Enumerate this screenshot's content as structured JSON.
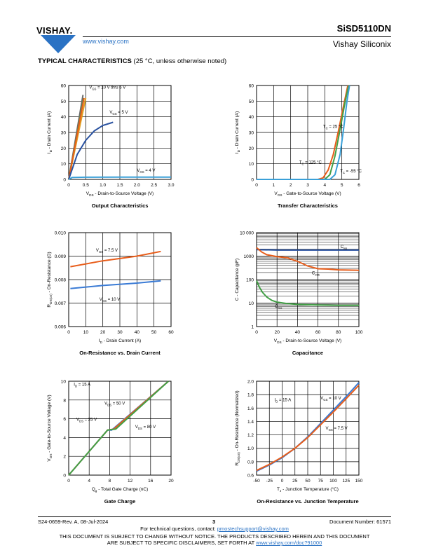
{
  "header": {
    "brand": "VISHAY.",
    "website": "www.vishay.com",
    "part_number": "SiSD5110DN",
    "company": "Vishay Siliconix"
  },
  "section": {
    "title": "TYPICAL CHARACTERISTICS",
    "note": "(25 °C, unless otherwise noted)"
  },
  "footer": {
    "revision": "S24-0659-Rev. A, 08-Jul-2024",
    "page": "3",
    "doc_number": "Document Number: 61571",
    "contact_prefix": "For technical questions, contact:",
    "contact_email": "pmostechsupport@vishay.com",
    "notice_line1": "THIS DOCUMENT IS SUBJECT TO CHANGE WITHOUT NOTICE. THE PRODUCTS DESCRIBED HEREIN AND THIS DOCUMENT",
    "notice_line2_prefix": "ARE SUBJECT TO SPECIFIC DISCLAIMERS, SET FORTH AT",
    "notice_link": "www.vishay.com/doc?91000"
  },
  "chart_data": [
    {
      "id": "output",
      "type": "line",
      "title": "Output Characteristics",
      "xlabel": "V_DS - Drain-to-Source Voltage (V)",
      "ylabel": "I_D - Drain Current (A)",
      "xlim": [
        0,
        3.0
      ],
      "ylim": [
        0,
        60
      ],
      "xticks": [
        "0",
        "0.5",
        "1.0",
        "1.5",
        "2.0",
        "2.5",
        "3.0"
      ],
      "yticks": [
        "0",
        "10",
        "20",
        "30",
        "40",
        "50",
        "60"
      ],
      "grid": true,
      "annotations": [
        {
          "text": "V_GS = 10 V thru 6 V",
          "at": [
            0.6,
            58
          ]
        },
        {
          "text": "V_GS = 5 V",
          "at": [
            1.2,
            42
          ]
        },
        {
          "text": "V_GS = 4 V",
          "at": [
            2.0,
            5
          ]
        }
      ],
      "series": [
        {
          "color": "#6b6b6b",
          "points": [
            [
              0,
              0
            ],
            [
              0.42,
              54
            ]
          ]
        },
        {
          "color": "#e0a020",
          "points": [
            [
              0,
              0
            ],
            [
              0.5,
              52
            ]
          ]
        },
        {
          "color": "#43a047",
          "points": [
            [
              0,
              0
            ],
            [
              0.44,
              52
            ]
          ]
        },
        {
          "color": "#e85d1a",
          "points": [
            [
              0,
              0
            ],
            [
              0.45,
              52
            ]
          ]
        },
        {
          "color": "#2a52a0",
          "points": [
            [
              0,
              0
            ],
            [
              0.25,
              16
            ],
            [
              0.5,
              25
            ],
            [
              0.75,
              31
            ],
            [
              1.0,
              34.5
            ],
            [
              1.3,
              36.5
            ]
          ]
        },
        {
          "color": "#3aa0d8",
          "points": [
            [
              0,
              0
            ],
            [
              0.1,
              1.2
            ],
            [
              0.5,
              1.4
            ],
            [
              1.5,
              1.5
            ],
            [
              2.5,
              1.5
            ],
            [
              3.0,
              1.5
            ]
          ]
        }
      ]
    },
    {
      "id": "transfer",
      "type": "line",
      "title": "Transfer Characteristics",
      "xlabel": "V_GS - Gate-to-Source Voltage (V)",
      "ylabel": "I_D - Drain Current (A)",
      "xlim": [
        0,
        6
      ],
      "ylim": [
        0,
        60
      ],
      "xticks": [
        "0",
        "1",
        "2",
        "3",
        "4",
        "5",
        "6"
      ],
      "yticks": [
        "0",
        "10",
        "20",
        "30",
        "40",
        "50",
        "60"
      ],
      "grid": true,
      "annotations": [
        {
          "text": "T_C = 25 °C",
          "at": [
            3.9,
            33
          ]
        },
        {
          "text": "T_C = 125 °C",
          "at": [
            2.5,
            10
          ]
        },
        {
          "text": "T_C = -55 °C",
          "at": [
            4.9,
            4.5
          ]
        }
      ],
      "series": [
        {
          "name": "T_C = 125 °C",
          "color": "#e85d1a",
          "points": [
            [
              0,
              0
            ],
            [
              3.6,
              0
            ],
            [
              3.9,
              1
            ],
            [
              4.2,
              6
            ],
            [
              4.5,
              16
            ],
            [
              4.8,
              31
            ],
            [
              5.1,
              47
            ],
            [
              5.35,
              60
            ]
          ]
        },
        {
          "name": "T_C = 25 °C",
          "color": "#43a047",
          "points": [
            [
              0,
              0
            ],
            [
              4.0,
              0
            ],
            [
              4.3,
              3
            ],
            [
              4.6,
              15
            ],
            [
              4.9,
              32
            ],
            [
              5.2,
              50
            ],
            [
              5.4,
              60
            ]
          ]
        },
        {
          "name": "T_C = -55 °C",
          "color": "#3aa0d8",
          "points": [
            [
              0,
              0
            ],
            [
              4.3,
              0
            ],
            [
              4.6,
              3
            ],
            [
              4.9,
              16
            ],
            [
              5.1,
              32
            ],
            [
              5.3,
              50
            ],
            [
              5.45,
              60
            ]
          ]
        }
      ]
    },
    {
      "id": "rdson_vs_id",
      "type": "line",
      "title": "On-Resistance vs. Drain Current",
      "xlabel": "I_D - Drain Current (A)",
      "ylabel": "R_DS(on) - On-Resistance (Ω)",
      "xlim": [
        0,
        60
      ],
      "ylim": [
        0.006,
        0.01
      ],
      "xticks": [
        "0",
        "10",
        "20",
        "30",
        "40",
        "50",
        "60"
      ],
      "yticks": [
        "0.006",
        "0.007",
        "0.008",
        "0.009",
        "0.010"
      ],
      "grid": true,
      "annotations": [
        {
          "text": "V_GS = 7.5 V",
          "at": [
            16,
            0.0092
          ]
        },
        {
          "text": "V_GS = 10 V",
          "at": [
            18,
            0.0071
          ]
        }
      ],
      "series": [
        {
          "name": "V_GS = 7.5 V",
          "color": "#e85d1a",
          "points": [
            [
              1,
              0.00855
            ],
            [
              20,
              0.0088
            ],
            [
              40,
              0.009
            ],
            [
              54,
              0.0092
            ]
          ]
        },
        {
          "name": "V_GS = 10 V",
          "color": "#3a7bd5",
          "points": [
            [
              1,
              0.00762
            ],
            [
              20,
              0.00775
            ],
            [
              40,
              0.00785
            ],
            [
              54,
              0.00795
            ]
          ]
        }
      ]
    },
    {
      "id": "capacitance",
      "type": "line",
      "title": "Capacitance",
      "xlabel": "V_DS - Drain-to-Source Voltage (V)",
      "ylabel": "C - Capacitance (pF)",
      "xlim": [
        0,
        100
      ],
      "ylim": [
        1,
        10000
      ],
      "yscale": "log",
      "xticks": [
        "0",
        "20",
        "40",
        "60",
        "80",
        "100"
      ],
      "yticks": [
        "1",
        "10",
        "100",
        "1000",
        "10 000"
      ],
      "grid": true,
      "annotations": [
        {
          "text": "C_iss",
          "at": [
            82,
            2200
          ]
        },
        {
          "text": "C_oss",
          "at": [
            54,
            170
          ]
        },
        {
          "text": "C_rss",
          "at": [
            18,
            6.5
          ]
        }
      ],
      "series": [
        {
          "name": "C_iss",
          "color": "#2a52a0",
          "points": [
            [
              0,
              1900
            ],
            [
              20,
              1800
            ],
            [
              40,
              1800
            ],
            [
              60,
              1800
            ],
            [
              80,
              1800
            ],
            [
              100,
              1800
            ]
          ]
        },
        {
          "name": "C_oss",
          "color": "#e85d1a",
          "points": [
            [
              0,
              2300
            ],
            [
              5,
              1500
            ],
            [
              10,
              1150
            ],
            [
              20,
              950
            ],
            [
              30,
              850
            ],
            [
              40,
              600
            ],
            [
              50,
              380
            ],
            [
              60,
              290
            ],
            [
              70,
              280
            ],
            [
              80,
              260
            ],
            [
              100,
              250
            ]
          ]
        },
        {
          "name": "C_rss",
          "color": "#43a047",
          "points": [
            [
              0,
              90
            ],
            [
              3,
              45
            ],
            [
              6,
              28
            ],
            [
              10,
              18
            ],
            [
              15,
              13
            ],
            [
              20,
              11
            ],
            [
              30,
              9.5
            ],
            [
              40,
              8.8
            ],
            [
              60,
              8.3
            ],
            [
              80,
              8
            ],
            [
              100,
              8
            ]
          ]
        }
      ]
    },
    {
      "id": "gate_charge",
      "type": "line",
      "title": "Gate Charge",
      "xlabel": "Q_g - Total Gate Charge (nC)",
      "ylabel": "V_GS - Gate-to-Source Voltage (V)",
      "xlim": [
        0,
        20
      ],
      "ylim": [
        0,
        10
      ],
      "xticks": [
        "0",
        "4",
        "8",
        "12",
        "16",
        "20"
      ],
      "yticks": [
        "0",
        "2",
        "4",
        "6",
        "8",
        "10"
      ],
      "grid": true,
      "annotations": [
        {
          "text": "I_D = 15 A",
          "at": [
            1,
            9.5
          ]
        },
        {
          "text": "V_DS = 50 V",
          "at": [
            7,
            7.5
          ]
        },
        {
          "text": "V_DS = 25 V",
          "at": [
            1.5,
            5.8
          ]
        },
        {
          "text": "V_DS = 80 V",
          "at": [
            13,
            5
          ]
        }
      ],
      "series": [
        {
          "name": "V_DS = 25 V",
          "color": "#3a7bd5",
          "points": [
            [
              0,
              0
            ],
            [
              7.6,
              4.8
            ],
            [
              8.4,
              4.8
            ],
            [
              19.5,
              10
            ]
          ]
        },
        {
          "name": "V_DS = 50 V",
          "color": "#e85d1a",
          "points": [
            [
              0,
              0
            ],
            [
              7.6,
              4.8
            ],
            [
              8.8,
              4.9
            ],
            [
              19.5,
              10
            ]
          ]
        },
        {
          "name": "V_DS = 80 V",
          "color": "#43a047",
          "points": [
            [
              0,
              0
            ],
            [
              7.6,
              4.8
            ],
            [
              9.2,
              4.9
            ],
            [
              19.5,
              10
            ]
          ]
        }
      ]
    },
    {
      "id": "rdson_vs_temp",
      "type": "line",
      "title": "On-Resistance vs. Junction Temperature",
      "xlabel": "T_J - Junction Temperature (°C)",
      "ylabel": "R_DS(on) - On-Resistance (Normalized)",
      "xlim": [
        -50,
        150
      ],
      "ylim": [
        0.6,
        2.0
      ],
      "xticks": [
        "-50",
        "-25",
        "0",
        "25",
        "50",
        "75",
        "100",
        "125",
        "150"
      ],
      "yticks": [
        "0.6",
        "0.8",
        "1.0",
        "1.2",
        "1.4",
        "1.6",
        "1.8",
        "2.0"
      ],
      "grid": true,
      "annotations": [
        {
          "text": "I_D = 15 A",
          "at": [
            -15,
            1.7
          ]
        },
        {
          "text": "V_GS = 10 V",
          "at": [
            75,
            1.73
          ]
        },
        {
          "text": "V_GS = 7.5 V",
          "at": [
            85,
            1.28
          ]
        }
      ],
      "series": [
        {
          "name": "V_GS = 10 V",
          "color": "#3a7bd5",
          "points": [
            [
              -50,
              0.66
            ],
            [
              -25,
              0.75
            ],
            [
              0,
              0.86
            ],
            [
              25,
              1.0
            ],
            [
              50,
              1.17
            ],
            [
              75,
              1.37
            ],
            [
              100,
              1.57
            ],
            [
              125,
              1.77
            ],
            [
              150,
              1.98
            ]
          ]
        },
        {
          "name": "V_GS = 7.5 V",
          "color": "#e85d1a",
          "points": [
            [
              -50,
              0.67
            ],
            [
              -25,
              0.76
            ],
            [
              0,
              0.87
            ],
            [
              25,
              1.0
            ],
            [
              50,
              1.16
            ],
            [
              75,
              1.35
            ],
            [
              100,
              1.54
            ],
            [
              125,
              1.74
            ],
            [
              150,
              1.94
            ]
          ]
        }
      ]
    }
  ]
}
